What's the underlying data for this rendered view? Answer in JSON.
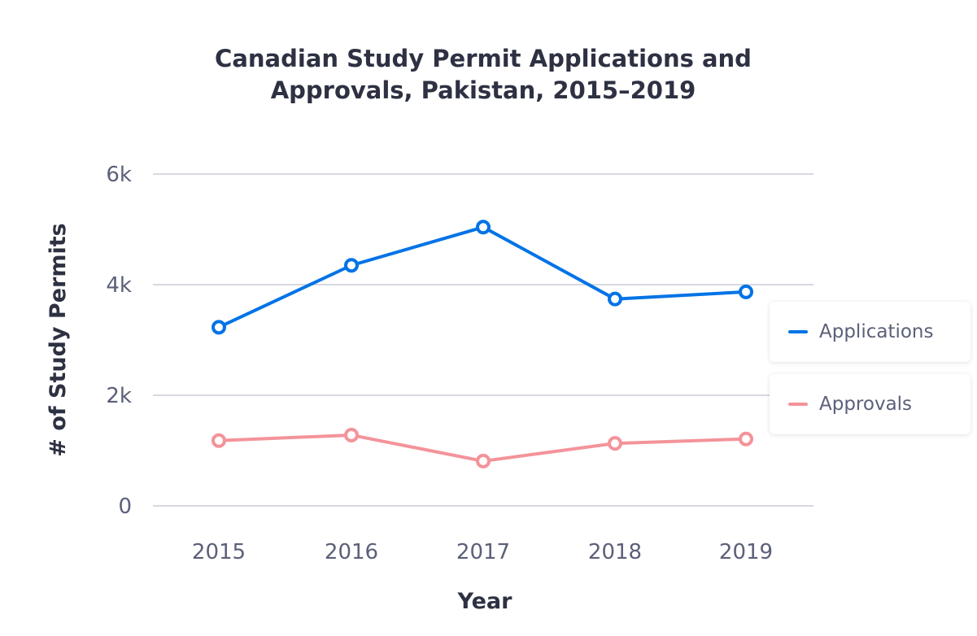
{
  "chart_data": {
    "type": "line",
    "title": "Canadian Study Permit Applications and Approvals, Pakistan, 2015–2019",
    "title_lines": [
      "Canadian Study Permit Applications and",
      "Approvals, Pakistan, 2015–2019"
    ],
    "xlabel": "Year",
    "ylabel": "# of Study Permits",
    "categories": [
      "2015",
      "2016",
      "2017",
      "2018",
      "2019"
    ],
    "ylim": [
      0,
      6000
    ],
    "yticks": [
      0,
      2000,
      4000,
      6000
    ],
    "ytick_labels": [
      "0",
      "2k",
      "4k",
      "6k"
    ],
    "grid": true,
    "legend_position": "right",
    "series": [
      {
        "name": "Applications",
        "color": "#0073e6",
        "values": [
          3230,
          4350,
          5040,
          3740,
          3870
        ]
      },
      {
        "name": "Approvals",
        "color": "#f4939a",
        "values": [
          1180,
          1280,
          810,
          1130,
          1210
        ]
      }
    ]
  }
}
